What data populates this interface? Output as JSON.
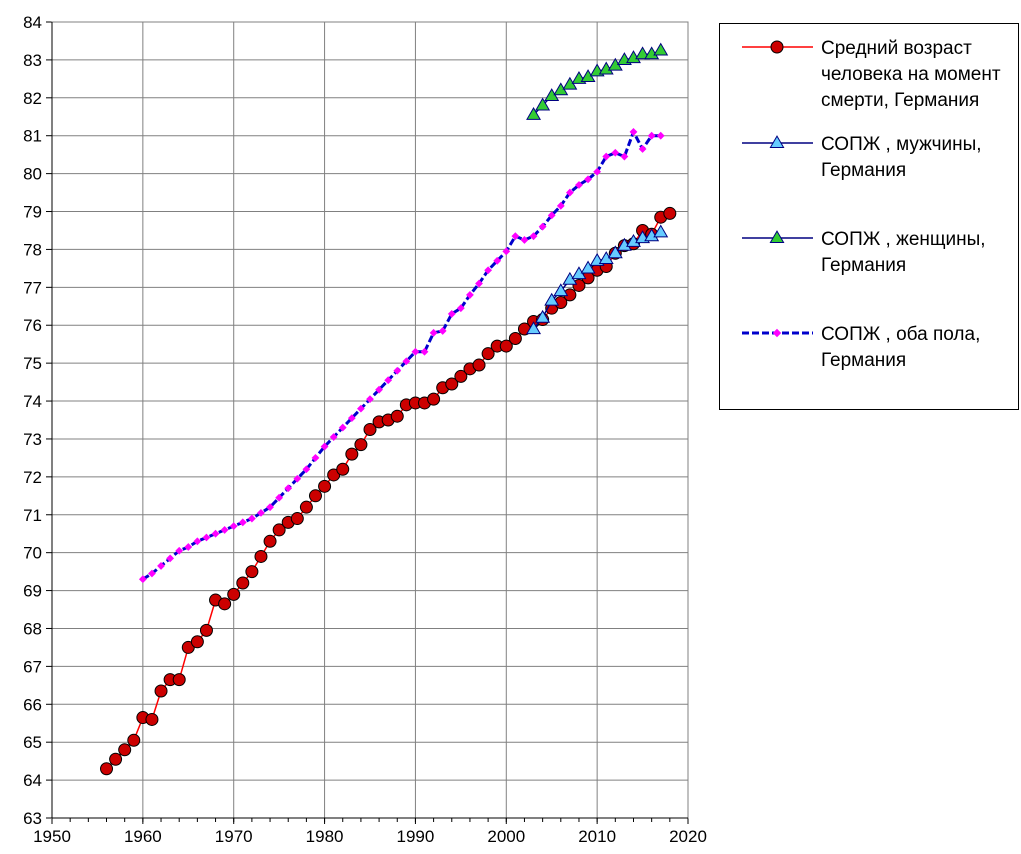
{
  "chart_data": {
    "type": "line",
    "title": "",
    "xlabel": "",
    "ylabel": "",
    "xlim": [
      1950,
      2020
    ],
    "ylim": [
      63,
      84
    ],
    "x_ticks": [
      "1950",
      "1960",
      "1970",
      "1980",
      "1990",
      "2000",
      "2010",
      "2020"
    ],
    "y_ticks": [
      "63",
      "64",
      "65",
      "66",
      "67",
      "68",
      "69",
      "70",
      "71",
      "72",
      "73",
      "74",
      "75",
      "76",
      "77",
      "78",
      "79",
      "80",
      "81",
      "82",
      "83",
      "84"
    ],
    "grid": true,
    "legend_position": "right",
    "series": [
      {
        "name": "Средний возраст человека на момент смерти, Германия",
        "color": "#ff0000",
        "marker": "circle",
        "marker_fill": "#cc0000",
        "line_style": "solid",
        "x": [
          1956,
          1957,
          1958,
          1959,
          1960,
          1961,
          1962,
          1963,
          1964,
          1965,
          1966,
          1967,
          1968,
          1969,
          1970,
          1971,
          1972,
          1973,
          1974,
          1975,
          1976,
          1977,
          1978,
          1979,
          1980,
          1981,
          1982,
          1983,
          1984,
          1985,
          1986,
          1987,
          1988,
          1989,
          1990,
          1991,
          1992,
          1993,
          1994,
          1995,
          1996,
          1997,
          1998,
          1999,
          2000,
          2001,
          2002,
          2003,
          2004,
          2005,
          2006,
          2007,
          2008,
          2009,
          2010,
          2011,
          2012,
          2013,
          2014,
          2015,
          2016,
          2017,
          2018
        ],
        "y": [
          64.3,
          64.55,
          64.8,
          65.05,
          65.65,
          65.6,
          66.35,
          66.65,
          66.65,
          67.5,
          67.65,
          67.95,
          68.75,
          68.65,
          68.9,
          69.2,
          69.5,
          69.9,
          70.3,
          70.6,
          70.8,
          70.9,
          71.2,
          71.5,
          71.75,
          72.05,
          72.2,
          72.6,
          72.85,
          73.25,
          73.45,
          73.5,
          73.6,
          73.9,
          73.95,
          73.95,
          74.05,
          74.35,
          74.45,
          74.65,
          74.85,
          74.95,
          75.25,
          75.45,
          75.45,
          75.65,
          75.9,
          76.1,
          76.15,
          76.45,
          76.6,
          76.8,
          77.05,
          77.25,
          77.45,
          77.55,
          77.9,
          78.1,
          78.15,
          78.5,
          78.4,
          78.85,
          78.95
        ]
      },
      {
        "name": "СОПЖ , мужчины, Германия",
        "color": "#000080",
        "marker": "triangle",
        "marker_fill": "#66ccff",
        "line_style": "solid",
        "x": [
          2003,
          2004,
          2005,
          2006,
          2007,
          2008,
          2009,
          2010,
          2011,
          2012,
          2013,
          2014,
          2015,
          2016,
          2017
        ],
        "y": [
          75.9,
          76.2,
          76.65,
          76.9,
          77.2,
          77.35,
          77.5,
          77.7,
          77.75,
          77.9,
          78.1,
          78.2,
          78.3,
          78.35,
          78.45
        ]
      },
      {
        "name": "СОПЖ , женщины, Германия",
        "color": "#000080",
        "marker": "triangle",
        "marker_fill": "#33cc33",
        "line_style": "solid",
        "x": [
          2003,
          2004,
          2005,
          2006,
          2007,
          2008,
          2009,
          2010,
          2011,
          2012,
          2013,
          2014,
          2015,
          2016,
          2017
        ],
        "y": [
          81.55,
          81.8,
          82.05,
          82.2,
          82.35,
          82.5,
          82.55,
          82.7,
          82.75,
          82.85,
          83.0,
          83.05,
          83.15,
          83.15,
          83.25
        ]
      },
      {
        "name": "СОПЖ , оба пола, Германия",
        "color": "#0000cc",
        "marker": "diamond",
        "marker_fill": "#ff00ff",
        "line_style": "dashed",
        "x": [
          1960,
          1961,
          1962,
          1963,
          1964,
          1965,
          1966,
          1967,
          1968,
          1969,
          1970,
          1971,
          1972,
          1973,
          1974,
          1975,
          1976,
          1977,
          1978,
          1979,
          1980,
          1981,
          1982,
          1983,
          1984,
          1985,
          1986,
          1987,
          1988,
          1989,
          1990,
          1991,
          1992,
          1993,
          1994,
          1995,
          1996,
          1997,
          1998,
          1999,
          2000,
          2001,
          2002,
          2003,
          2004,
          2005,
          2006,
          2007,
          2008,
          2009,
          2010,
          2011,
          2012,
          2013,
          2014,
          2015,
          2016,
          2017
        ],
        "y": [
          69.3,
          69.45,
          69.65,
          69.85,
          70.05,
          70.15,
          70.3,
          70.4,
          70.5,
          70.6,
          70.7,
          70.8,
          70.9,
          71.05,
          71.2,
          71.45,
          71.7,
          71.95,
          72.2,
          72.5,
          72.8,
          73.05,
          73.3,
          73.55,
          73.8,
          74.05,
          74.3,
          74.55,
          74.8,
          75.05,
          75.3,
          75.3,
          75.8,
          75.85,
          76.3,
          76.45,
          76.8,
          77.1,
          77.45,
          77.7,
          77.95,
          78.35,
          78.25,
          78.35,
          78.6,
          78.9,
          79.15,
          79.5,
          79.7,
          79.85,
          80.05,
          80.45,
          80.55,
          80.45,
          81.1,
          80.65,
          81.0,
          81.0
        ]
      }
    ]
  },
  "legend": {
    "items": [
      {
        "label": "Средний возраст человека на момент смерти, Германия",
        "line_color": "#ff0000",
        "marker": "circle",
        "marker_fill": "#cc0000",
        "dashed": false
      },
      {
        "label": "СОПЖ , мужчины, Германия",
        "line_color": "#000080",
        "marker": "triangle",
        "marker_fill": "#66ccff",
        "dashed": false
      },
      {
        "label": "СОПЖ , женщины, Германия",
        "line_color": "#000080",
        "marker": "triangle",
        "marker_fill": "#33cc33",
        "dashed": false
      },
      {
        "label": "СОПЖ , оба пола, Германия",
        "line_color": "#0000cc",
        "marker": "diamond",
        "marker_fill": "#ff00ff",
        "dashed": true
      }
    ]
  }
}
